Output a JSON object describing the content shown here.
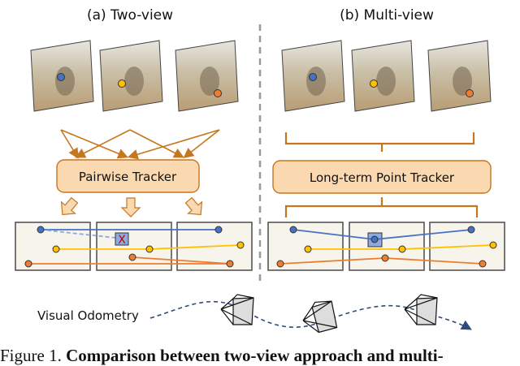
{
  "panels": {
    "left_title": "(a) Two-view",
    "right_title": "(b) Multi-view",
    "left_tracker": "Pairwise Tracker",
    "right_tracker": "Long-term Point Tracker"
  },
  "odometry_label": "Visual Odometry",
  "caption": {
    "prefix": "Figure 1.",
    "bold": "Comparison between two-view approach and multi-"
  },
  "colors": {
    "blue": "#4472c4",
    "yellow": "#ffc000",
    "orange": "#ed7d31",
    "tracker_fill": "#fbd9b0",
    "tracker_stroke": "#c6761e",
    "frame_bg": "#f7f4ec"
  }
}
